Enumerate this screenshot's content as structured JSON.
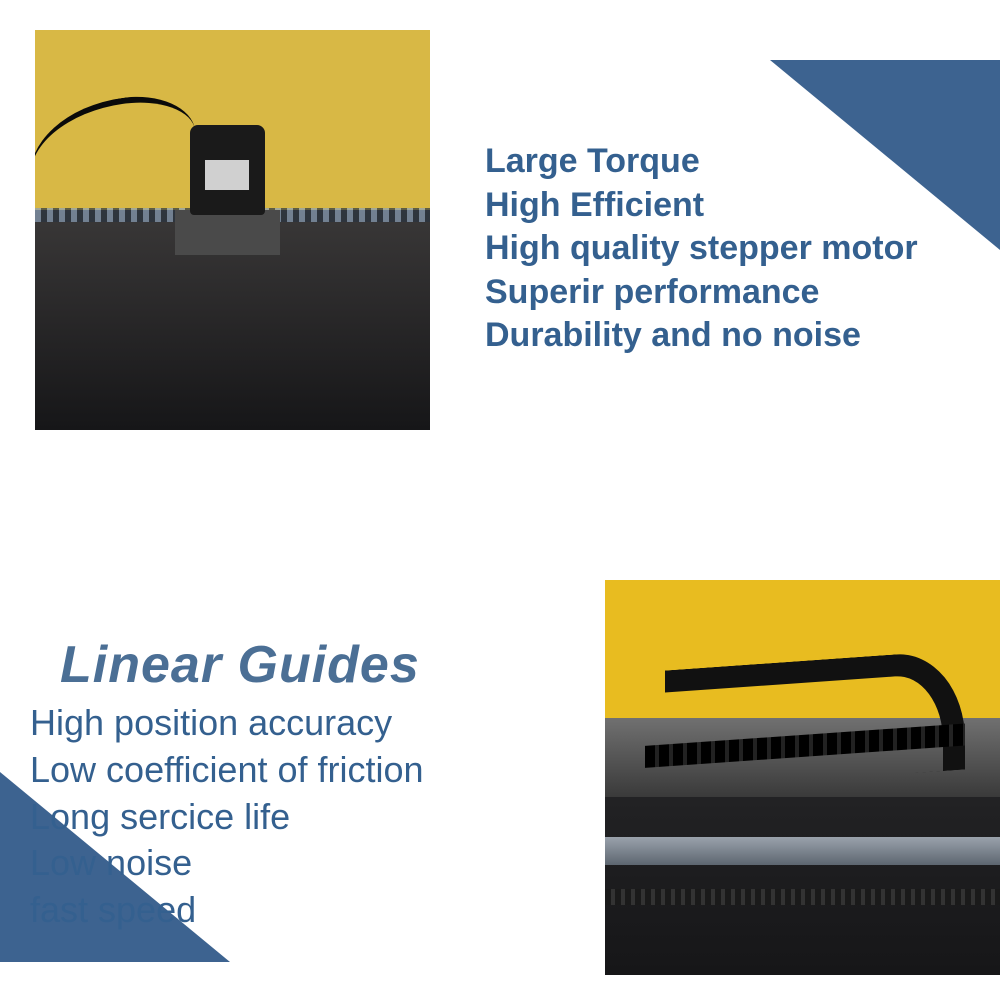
{
  "colors": {
    "text": "#34608f",
    "heading": "#4b6f95",
    "triangle": "#3d6390",
    "background": "#ffffff",
    "photo1_top": "#d8b845",
    "photo1_bottom": "#161618",
    "photo2_yellow": "#e8bc20"
  },
  "typography": {
    "feature_fontsize": 34,
    "feature_weight": 600,
    "heading_fontsize": 52,
    "heading_weight": 900,
    "heading_style": "italic"
  },
  "section1": {
    "features": [
      "Large Torque",
      "High Efficient",
      "High quality stepper motor",
      "Superir performance",
      "Durability and no noise"
    ]
  },
  "section2": {
    "heading": "Linear Guides",
    "features": [
      "High position accuracy",
      "Low coefficient of friction",
      "Long sercice life",
      "Low noise",
      "fast speed"
    ]
  }
}
